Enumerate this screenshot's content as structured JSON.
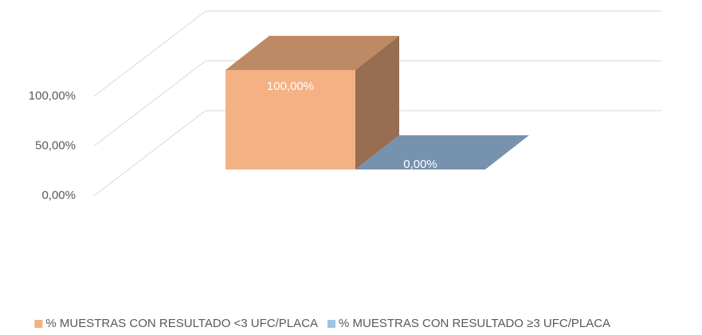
{
  "chart_data": {
    "type": "bar3d",
    "categories": [
      null
    ],
    "series": [
      {
        "name": "% MUESTRAS CON RESULTADO <3 UFC/PLACA",
        "color": "#f4b183",
        "values": [
          100
        ],
        "value_labels": [
          "100,00%"
        ]
      },
      {
        "name": "% MUESTRAS CON RESULTADO ≥3 UFC/PLACA",
        "color": "#9dc3e6",
        "values": [
          0
        ],
        "value_labels": [
          "0,00%"
        ]
      }
    ],
    "ylim": [
      0,
      100
    ],
    "yticks": [
      {
        "value": 0,
        "label": "0,00%"
      },
      {
        "value": 50,
        "label": "50,00%"
      },
      {
        "value": 100,
        "label": "100,00%"
      }
    ],
    "grid": true,
    "legend": "bottom"
  }
}
